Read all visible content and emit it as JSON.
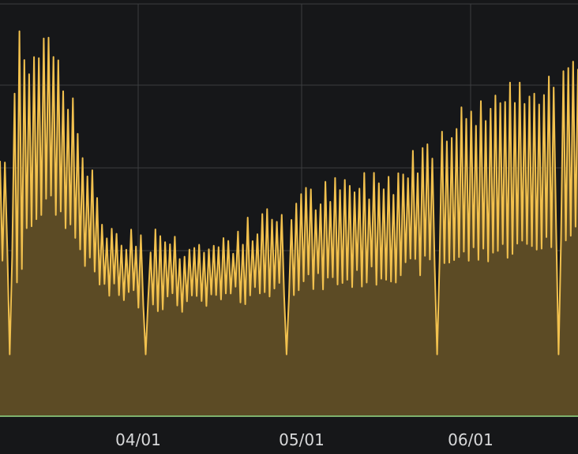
{
  "chart_data": {
    "type": "area",
    "title": "",
    "xlabel": "",
    "ylabel": "",
    "x_ticks": [
      "04/01",
      "05/01",
      "06/01"
    ],
    "grid": true,
    "legend": "none",
    "colors": {
      "background": "#161719",
      "grid": "#3c3d40",
      "line": "#f2c14e",
      "fill": "#5c4b25",
      "baseline": "#7eb26d",
      "tick_text": "#d8d9da"
    },
    "series": [
      {
        "daily_points_approx": [
          {
            "day": 0,
            "high": 0.62,
            "low": 0.27
          },
          {
            "day": 2,
            "high": 0.92,
            "low": 0.2
          },
          {
            "day": 4,
            "high": 0.86,
            "low": 0.35
          },
          {
            "day": 8,
            "high": 0.93,
            "low": 0.4
          },
          {
            "day": 12,
            "high": 0.78,
            "low": 0.35
          },
          {
            "day": 16,
            "high": 0.6,
            "low": 0.25
          },
          {
            "day": 20,
            "high": 0.45,
            "low": 0.18
          },
          {
            "day": 30,
            "high": 0.43,
            "low": 0.16
          },
          {
            "day": 40,
            "high": 0.4,
            "low": 0.15
          },
          {
            "day": 50,
            "high": 0.45,
            "low": 0.18
          },
          {
            "day": 60,
            "high": 0.52,
            "low": 0.2
          },
          {
            "day": 70,
            "high": 0.55,
            "low": 0.21
          },
          {
            "day": 80,
            "high": 0.58,
            "low": 0.23
          },
          {
            "day": 90,
            "high": 0.7,
            "low": 0.26
          },
          {
            "day": 100,
            "high": 0.76,
            "low": 0.28
          },
          {
            "day": 110,
            "high": 0.8,
            "low": 0.3
          },
          {
            "day": 116,
            "high": 0.88,
            "low": 0.34
          }
        ]
      }
    ]
  }
}
